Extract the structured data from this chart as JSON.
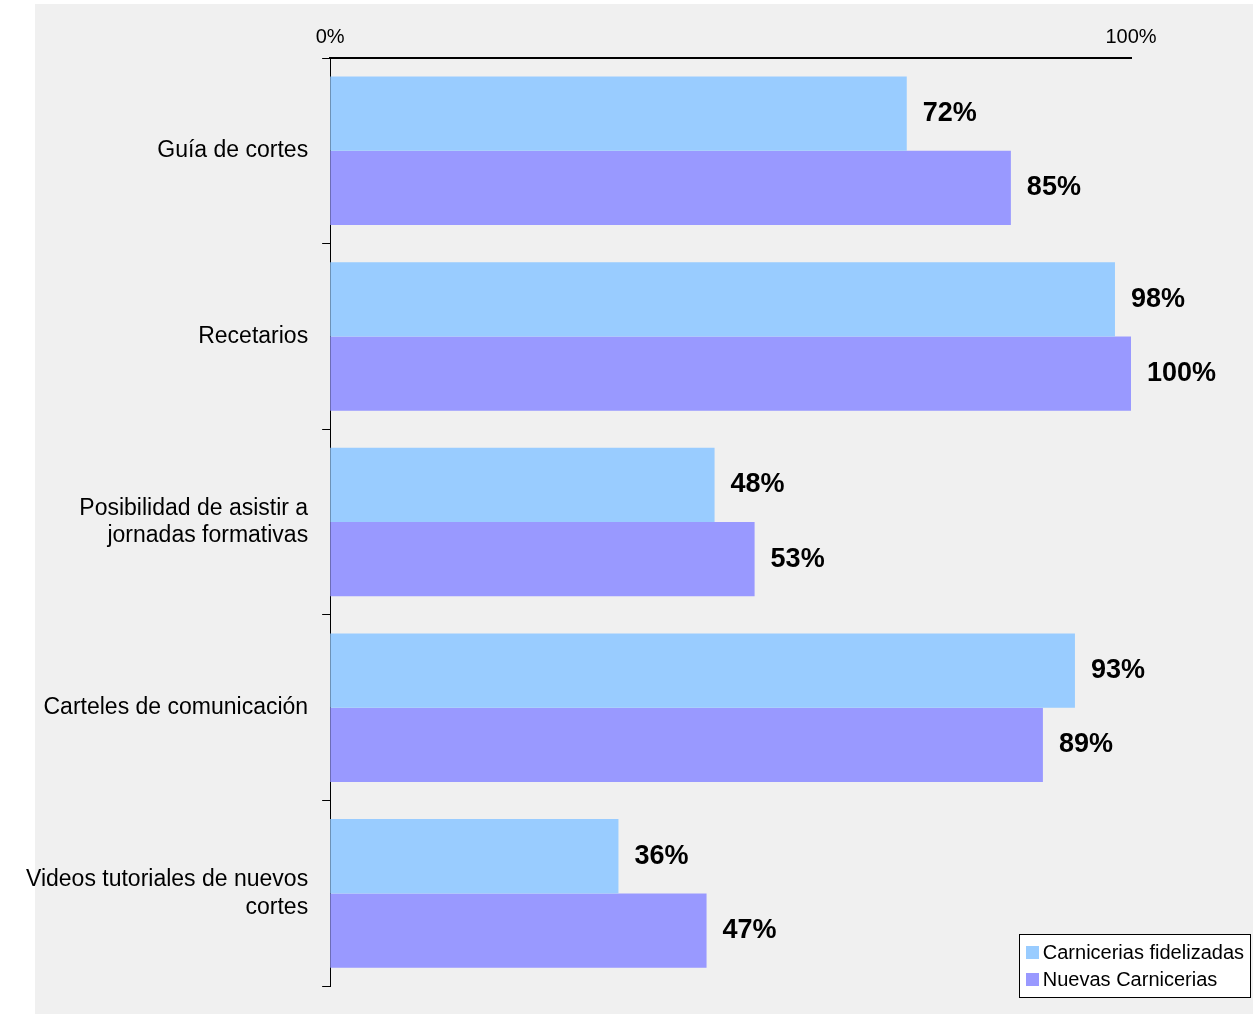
{
  "chart_data": {
    "type": "bar",
    "orientation": "horizontal",
    "categories": [
      "Guía de cortes",
      "Recetarios",
      "Posibilidad de asistir a jornadas formativas",
      "Carteles de comunicación",
      "Videos tutoriales de nuevos cortes"
    ],
    "series": [
      {
        "name": "Carnicerias fidelizadas",
        "color": "#99ccff",
        "values": [
          72,
          98,
          48,
          93,
          36
        ],
        "value_labels": [
          "72%",
          "98%",
          "48%",
          "93%",
          "36%"
        ]
      },
      {
        "name": "Nuevas Carnicerias",
        "color": "#9999ff",
        "values": [
          85,
          100,
          53,
          89,
          47
        ],
        "value_labels": [
          "85%",
          "100%",
          "53%",
          "89%",
          "47%"
        ]
      }
    ],
    "xlim": [
      0,
      100
    ],
    "xticks": [
      {
        "value": 0,
        "label": "0%"
      },
      {
        "value": 100,
        "label": "100%"
      }
    ],
    "grid": false,
    "legend": "bottom right"
  }
}
